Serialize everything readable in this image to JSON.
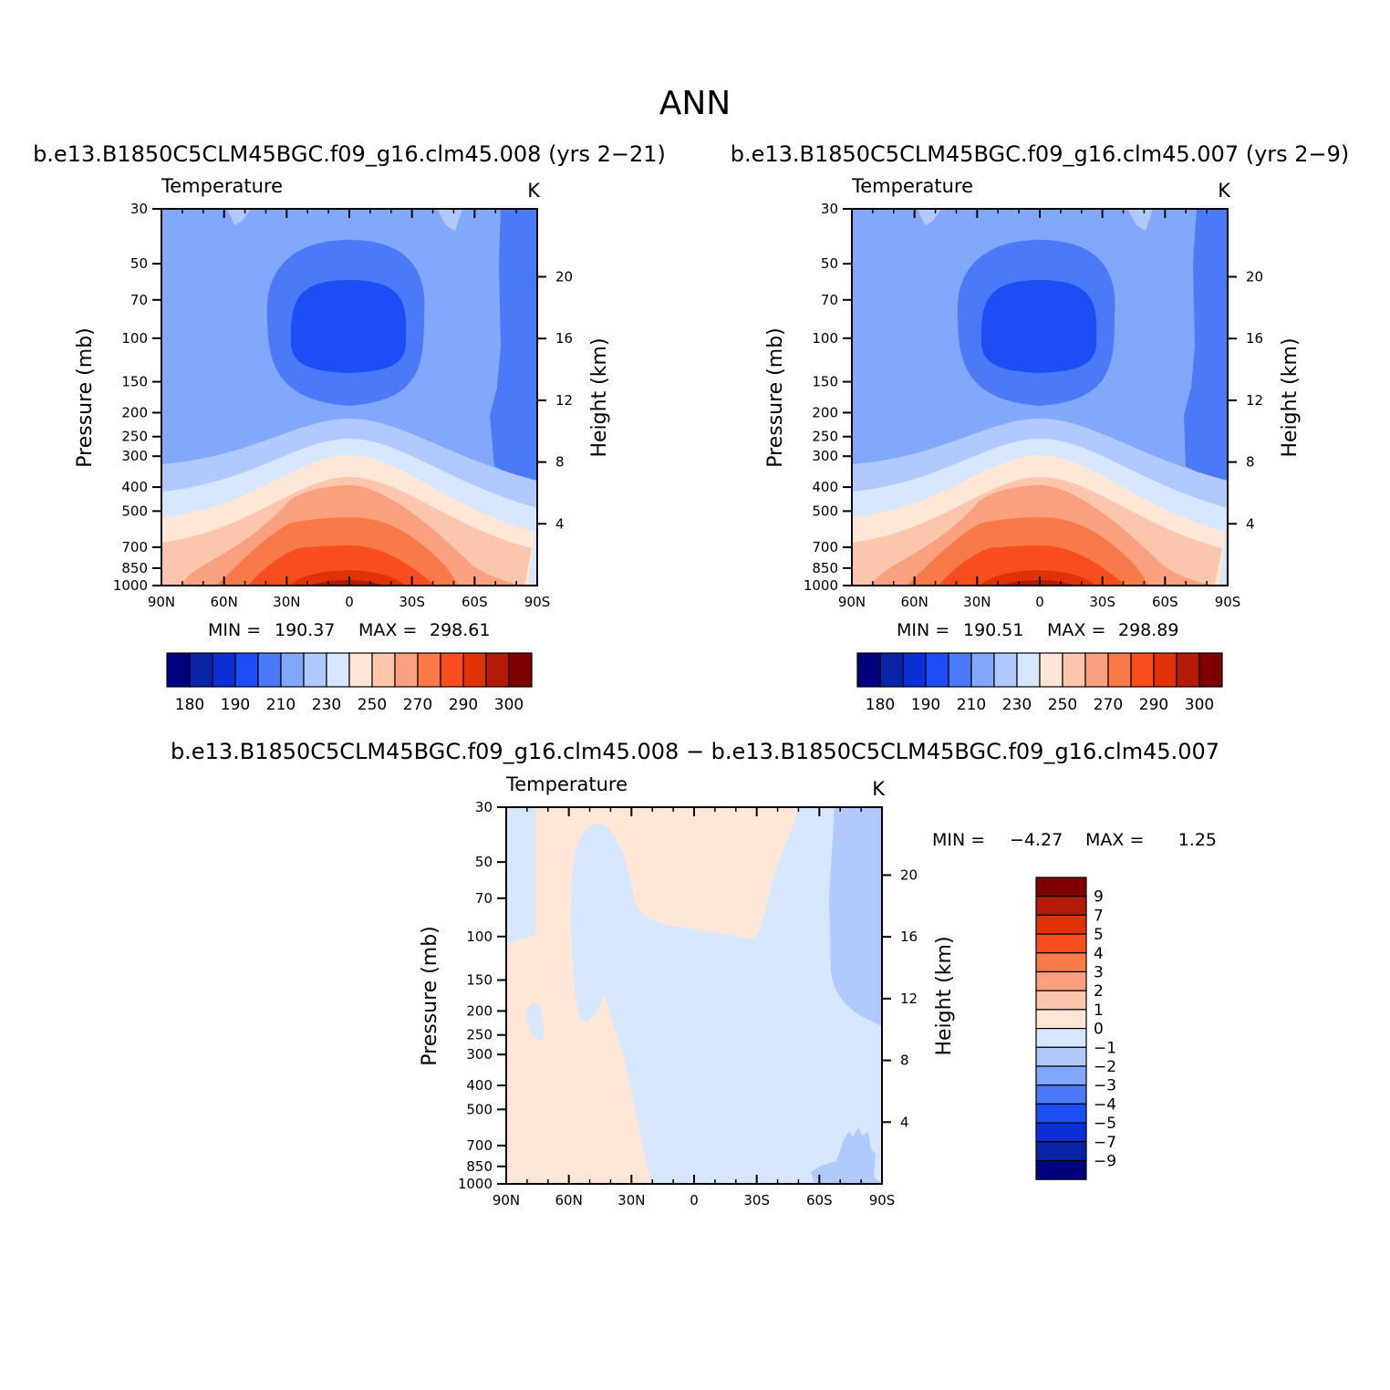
{
  "figure": {
    "title": "ANN",
    "panel_titles": [
      "b.e13.B1850C5CLM45BGC.f09_g16.clm45.008 (yrs 2−21)",
      "b.e13.B1850C5CLM45BGC.f09_g16.clm45.007 (yrs 2−9)",
      "b.e13.B1850C5CLM45BGC.f09_g16.clm45.008 − b.e13.B1850C5CLM45BGC.f09_g16.clm45.007"
    ],
    "variable_label": "Temperature",
    "units_label": "K",
    "y_label": "Pressure (mb)",
    "y2_label": "Height (km)",
    "x_ticks": [
      "90N",
      "60N",
      "30N",
      "0",
      "30S",
      "60S",
      "90S"
    ],
    "p_ticks": [
      "30",
      "50",
      "70",
      "100",
      "150",
      "200",
      "250",
      "300",
      "400",
      "500",
      "700",
      "850",
      "1000"
    ],
    "h_ticks": [
      "20",
      "16",
      "12",
      "8",
      "4"
    ],
    "panel_stats": [
      {
        "min_label": "MIN =",
        "min": "190.37",
        "max_label": "MAX =",
        "max": "298.61"
      },
      {
        "min_label": "MIN =",
        "min": "190.51",
        "max_label": "MAX =",
        "max": "298.89"
      },
      {
        "min_label": "MIN =",
        "min": "−4.27",
        "max_label": "MAX =",
        "max": "1.25"
      }
    ],
    "abs_colorbar_labels": [
      "180",
      "190",
      "210",
      "230",
      "250",
      "270",
      "290",
      "300"
    ],
    "diff_colorbar_labels": [
      "9",
      "7",
      "5",
      "4",
      "3",
      "2",
      "1",
      "0",
      "−1",
      "−2",
      "−3",
      "−4",
      "−5",
      "−7",
      "−9"
    ],
    "palette": [
      "#00007f",
      "#0a24a8",
      "#0a2fd6",
      "#1d4ef5",
      "#4a7af7",
      "#82a8fb",
      "#b2c9fd",
      "#d5e6fe",
      "#fee6d6",
      "#fcc6ad",
      "#f9a07f",
      "#f97a49",
      "#f94d1d",
      "#e13207",
      "#b31b07",
      "#7f0000"
    ]
  },
  "chart_data": [
    {
      "type": "heatmap",
      "title": "b.e13.B1850C5CLM45BGC.f09_g16.clm45.008 (yrs 2−21)",
      "variable": "Temperature",
      "units": "K",
      "xlabel": "",
      "ylabel": "Pressure (mb)",
      "y2label": "Height (km)",
      "x_range": [
        "90N",
        "90S"
      ],
      "y_range_mb": [
        30,
        1000
      ],
      "y_log": true,
      "min": 190.37,
      "max": 298.61,
      "contour_levels": [
        180,
        190,
        200,
        210,
        220,
        230,
        240,
        250,
        260,
        270,
        280,
        285,
        290,
        295,
        300
      ]
    },
    {
      "type": "heatmap",
      "title": "b.e13.B1850C5CLM45BGC.f09_g16.clm45.007 (yrs 2−9)",
      "variable": "Temperature",
      "units": "K",
      "xlabel": "",
      "ylabel": "Pressure (mb)",
      "y2label": "Height (km)",
      "x_range": [
        "90N",
        "90S"
      ],
      "y_range_mb": [
        30,
        1000
      ],
      "y_log": true,
      "min": 190.51,
      "max": 298.89,
      "contour_levels": [
        180,
        190,
        200,
        210,
        220,
        230,
        240,
        250,
        260,
        270,
        280,
        285,
        290,
        295,
        300
      ]
    },
    {
      "type": "heatmap",
      "title": "b.e13.B1850C5CLM45BGC.f09_g16.clm45.008 − b.e13.B1850C5CLM45BGC.f09_g16.clm45.007",
      "variable": "Temperature",
      "units": "K",
      "xlabel": "",
      "ylabel": "Pressure (mb)",
      "y2label": "Height (km)",
      "x_range": [
        "90N",
        "90S"
      ],
      "y_range_mb": [
        30,
        1000
      ],
      "y_log": true,
      "min": -4.27,
      "max": 1.25,
      "contour_levels": [
        -9,
        -7,
        -5,
        -4,
        -3,
        -2,
        -1,
        0,
        1,
        2,
        3,
        4,
        5,
        7,
        9
      ]
    }
  ]
}
